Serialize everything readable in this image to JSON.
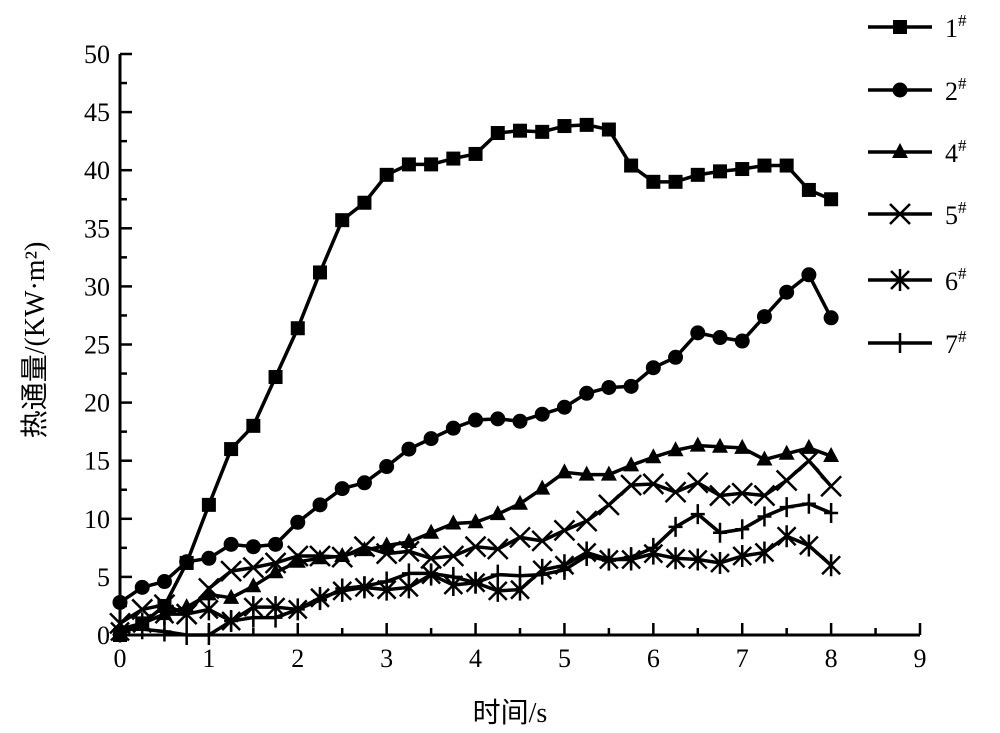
{
  "chart_data": {
    "type": "line",
    "title": "",
    "xlabel": "时间/s",
    "ylabel": "热通量/(KW·m²)",
    "xlim": [
      0,
      9
    ],
    "ylim": [
      0,
      50
    ],
    "xticks": [
      "0",
      "1",
      "2",
      "3",
      "4",
      "5",
      "6",
      "7",
      "8",
      "9"
    ],
    "yticks": [
      "0",
      "5",
      "10",
      "15",
      "20",
      "25",
      "30",
      "35",
      "40",
      "45",
      "50"
    ],
    "grid": false,
    "legend_position": "right",
    "x": [
      0,
      0.25,
      0.5,
      0.75,
      1,
      1.25,
      1.5,
      1.75,
      2,
      2.25,
      2.5,
      2.75,
      3,
      3.25,
      3.5,
      3.75,
      4,
      4.25,
      4.5,
      4.75,
      5,
      5.25,
      5.5,
      5.75,
      6,
      6.25,
      6.5,
      6.75,
      7,
      7.25,
      7.5,
      7.75,
      8
    ],
    "series": [
      {
        "name": "1#",
        "base": "1",
        "sup": "#",
        "marker": "square",
        "values": [
          0,
          1,
          2.5,
          6.2,
          11.2,
          16,
          18,
          22.2,
          26.4,
          31.2,
          35.7,
          37.2,
          39.6,
          40.5,
          40.5,
          41,
          41.4,
          43.2,
          43.4,
          43.3,
          43.8,
          43.9,
          43.5,
          40.4,
          39,
          39,
          39.6,
          39.9,
          40.1,
          40.4,
          40.4,
          38.3,
          37.5
        ]
      },
      {
        "name": "2#",
        "base": "2",
        "sup": "#",
        "marker": "circle",
        "values": [
          2.8,
          4.1,
          4.6,
          6.3,
          6.6,
          7.8,
          7.6,
          7.8,
          9.7,
          11.2,
          12.6,
          13.1,
          14.5,
          16,
          16.9,
          17.8,
          18.5,
          18.6,
          18.4,
          19,
          19.6,
          20.8,
          21.3,
          21.4,
          23,
          23.9,
          26,
          25.6,
          25.3,
          27.4,
          29.5,
          31,
          27.3
        ]
      },
      {
        "name": "4#",
        "base": "4",
        "sup": "#",
        "marker": "triangle",
        "values": [
          0.5,
          1,
          1.8,
          2.4,
          3.5,
          3.2,
          4.2,
          5.4,
          6.3,
          6.6,
          6.8,
          7.3,
          7.7,
          8,
          8.8,
          9.6,
          9.7,
          10.4,
          11.3,
          12.6,
          14,
          13.8,
          13.8,
          14.6,
          15.3,
          15.9,
          16.3,
          16.2,
          16.1,
          15.1,
          15.6,
          16.1,
          15.4
        ]
      },
      {
        "name": "5#",
        "base": "5",
        "sup": "#",
        "marker": "x",
        "values": [
          1,
          2.2,
          2.6,
          1.8,
          4,
          5.5,
          5.8,
          6.2,
          6.8,
          6.8,
          6.7,
          7.6,
          7,
          7.2,
          6.6,
          6.8,
          7.6,
          7.4,
          8.4,
          8.1,
          9,
          9.8,
          11.2,
          12.9,
          13,
          12.3,
          13.1,
          12,
          12.2,
          12,
          13.3,
          15,
          12.8
        ]
      },
      {
        "name": "6#",
        "base": "6",
        "sup": "#",
        "marker": "star",
        "values": [
          0.3,
          1,
          1.8,
          1.8,
          2.2,
          1.2,
          2.4,
          2.4,
          2.2,
          3.2,
          3.8,
          4.1,
          3.9,
          4.1,
          5.2,
          4.3,
          4.5,
          3.8,
          3.9,
          5.6,
          6,
          7.1,
          6.5,
          6.5,
          7,
          6.6,
          6.5,
          6.2,
          6.8,
          7.1,
          8.5,
          7.7,
          6
        ]
      },
      {
        "name": "7#",
        "base": "7",
        "sup": "#",
        "marker": "plus",
        "values": [
          0.5,
          0.5,
          0.3,
          0,
          0,
          1.2,
          1.5,
          1.5,
          2.2,
          3,
          4,
          4.2,
          4.6,
          5.3,
          5.3,
          5,
          4.5,
          5.2,
          5.1,
          5.2,
          5.6,
          6.8,
          6.4,
          6.7,
          7.5,
          9.3,
          10.4,
          8.8,
          9.1,
          10.2,
          11,
          11.3,
          10.5
        ]
      }
    ]
  }
}
